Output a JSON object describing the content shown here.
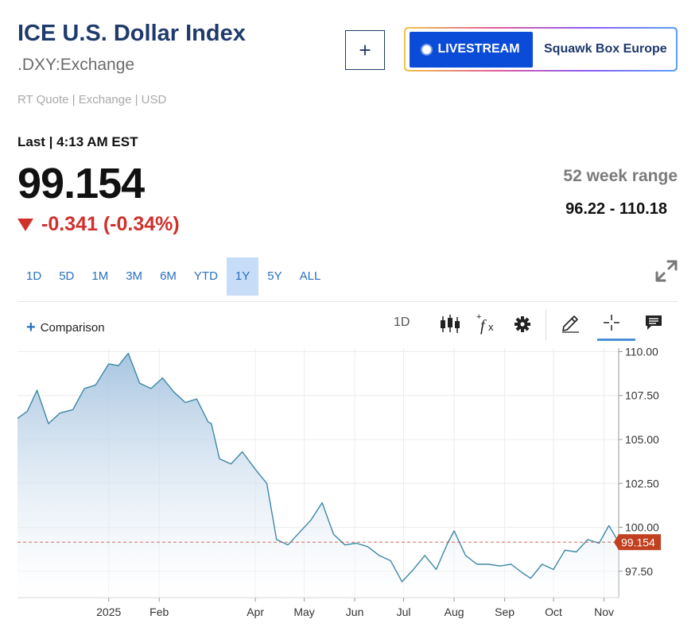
{
  "header": {
    "title": "ICE U.S. Dollar Index",
    "symbol": ".DXY:Exchange",
    "meta": "RT Quote | Exchange | USD",
    "add_label": "+",
    "livestream_label": "LIVESTREAM",
    "show_name": "Squawk Box Europe"
  },
  "quote": {
    "last_label": "Last | 4:13 AM EST",
    "price": "99.154",
    "change": "-0.341 (-0.34%)",
    "range_label": "52 week range",
    "range_value": "96.22 - 110.18"
  },
  "tabs": [
    {
      "label": "1D"
    },
    {
      "label": "5D"
    },
    {
      "label": "1M"
    },
    {
      "label": "3M"
    },
    {
      "label": "6M"
    },
    {
      "label": "YTD"
    },
    {
      "label": "1Y",
      "active": true
    },
    {
      "label": "5Y"
    },
    {
      "label": "ALL"
    }
  ],
  "toolbar": {
    "comparison_label": "Comparison",
    "interval_label": "1D"
  },
  "colors": {
    "line": "#3d87a6",
    "fill_top": "#a3c2df",
    "badge": "#c0401f",
    "negative": "#d0312d",
    "active_tab": "#c6dcf7"
  },
  "chart_data": {
    "type": "area",
    "ylim": [
      96,
      110.2
    ],
    "y_ticks": [
      "110.00",
      "107.50",
      "105.00",
      "102.50",
      "100.00",
      "97.50"
    ],
    "x_labels": [
      "2025",
      "Feb",
      "Apr",
      "May",
      "Jun",
      "Jul",
      "Aug",
      "Sep",
      "Oct",
      "Nov"
    ],
    "last_value_label": "99.154",
    "last_value": 99.154,
    "x": [
      "2024-11-06",
      "2024-11-12",
      "2024-11-18",
      "2024-11-25",
      "2024-12-02",
      "2024-12-10",
      "2024-12-17",
      "2024-12-24",
      "2025-01-01",
      "2025-01-07",
      "2025-01-13",
      "2025-01-20",
      "2025-01-27",
      "2025-02-03",
      "2025-02-10",
      "2025-02-17",
      "2025-02-24",
      "2025-03-03",
      "2025-03-05",
      "2025-03-10",
      "2025-03-17",
      "2025-03-24",
      "2025-04-01",
      "2025-04-08",
      "2025-04-14",
      "2025-04-21",
      "2025-04-28",
      "2025-05-05",
      "2025-05-12",
      "2025-05-19",
      "2025-05-26",
      "2025-06-02",
      "2025-06-09",
      "2025-06-16",
      "2025-06-23",
      "2025-06-30",
      "2025-07-07",
      "2025-07-14",
      "2025-07-21",
      "2025-07-28",
      "2025-08-01",
      "2025-08-08",
      "2025-08-15",
      "2025-08-22",
      "2025-08-29",
      "2025-09-05",
      "2025-09-12",
      "2025-09-17",
      "2025-09-24",
      "2025-10-01",
      "2025-10-08",
      "2025-10-15",
      "2025-10-22",
      "2025-10-29",
      "2025-11-04",
      "2025-11-10"
    ],
    "y": [
      106.2,
      106.6,
      107.8,
      105.9,
      106.5,
      106.7,
      107.9,
      108.1,
      109.3,
      109.2,
      109.9,
      108.2,
      107.9,
      108.5,
      107.7,
      107.1,
      107.3,
      106.0,
      105.9,
      103.9,
      103.6,
      104.3,
      103.3,
      102.5,
      99.3,
      99.0,
      99.7,
      100.4,
      101.4,
      99.6,
      99.0,
      99.1,
      98.9,
      98.4,
      98.1,
      96.9,
      97.6,
      98.4,
      97.6,
      99.1,
      99.8,
      98.4,
      97.9,
      97.9,
      97.8,
      97.9,
      97.4,
      97.1,
      97.9,
      97.6,
      98.7,
      98.6,
      99.3,
      99.1,
      100.1,
      99.154
    ]
  }
}
